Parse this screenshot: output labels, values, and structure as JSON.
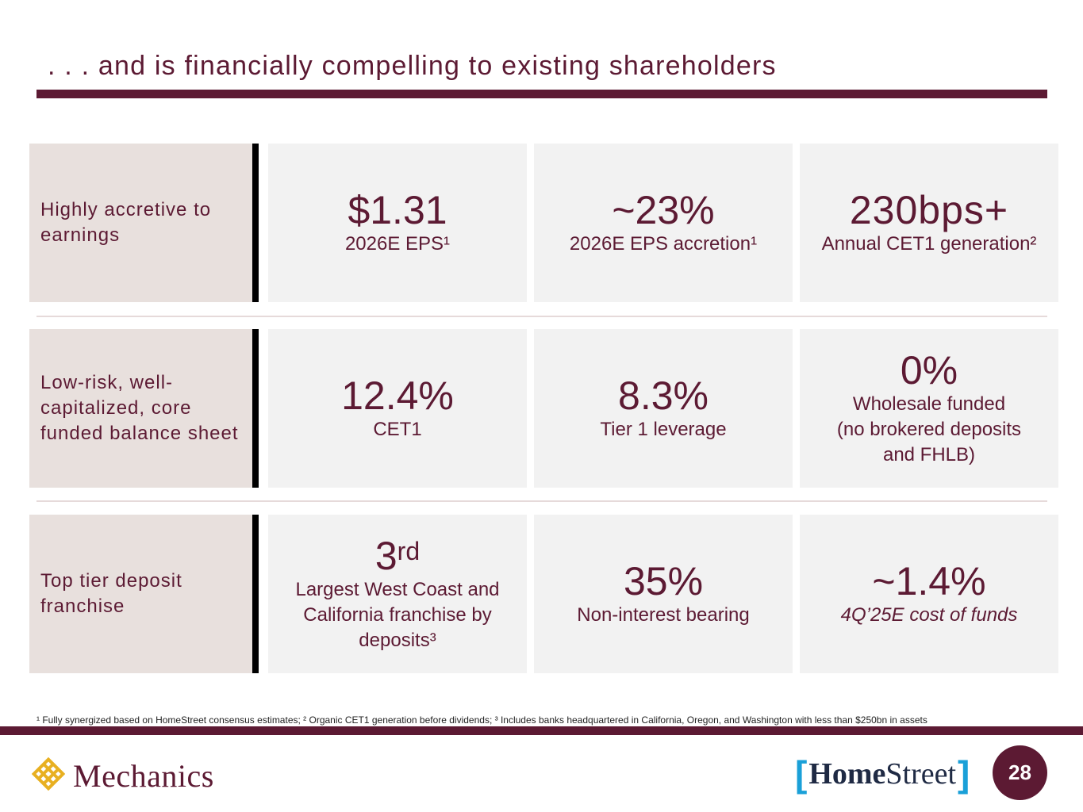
{
  "title": ". . . and is financially compelling to existing shareholders",
  "rows": [
    {
      "label": "Highly accretive to earnings",
      "cards": [
        {
          "value": "$1.31",
          "desc": "2026E EPS¹"
        },
        {
          "value": "~23%",
          "desc": "2026E EPS accretion¹"
        },
        {
          "value": "230bps+",
          "desc": "Annual CET1 generation²"
        }
      ]
    },
    {
      "label": "Low-risk, well-capitalized, core funded balance sheet",
      "cards": [
        {
          "value": "12.4%",
          "desc": "CET1"
        },
        {
          "value": "8.3%",
          "desc": "Tier 1 leverage"
        },
        {
          "value": "0%",
          "desc_lines": [
            "Wholesale funded",
            "(no brokered deposits",
            "and FHLB)"
          ]
        }
      ]
    },
    {
      "label": "Top tier deposit franchise",
      "cards": [
        {
          "value": "3",
          "value_sup": "rd",
          "desc_lines": [
            "Largest West Coast and",
            "California franchise by",
            "deposits³"
          ]
        },
        {
          "value": "35%",
          "desc": "Non-interest bearing"
        },
        {
          "value": "~1.4%",
          "desc": "4Q’25E cost of funds"
        }
      ]
    }
  ],
  "footnote": "¹ Fully synergized based on HomeStreet consensus estimates; ² Organic CET1 generation before dividends; ³ Includes banks headquartered in California, Oregon, and Washington with less than $250bn in assets",
  "logos": {
    "left_text": "Mechanics",
    "left_icon": "mechanics-knot-icon",
    "right_bracket_open": "[",
    "right_name_bold": "Home",
    "right_name_regular": "Street",
    "right_bracket_close": "]"
  },
  "page_number": "28",
  "colors": {
    "brand": "#5c1a33",
    "label_bg": "#e8e0dd",
    "card_bg": "#f2f2f2",
    "gold": "#e8b021",
    "homestreet_blue": "#1aa0d8"
  }
}
